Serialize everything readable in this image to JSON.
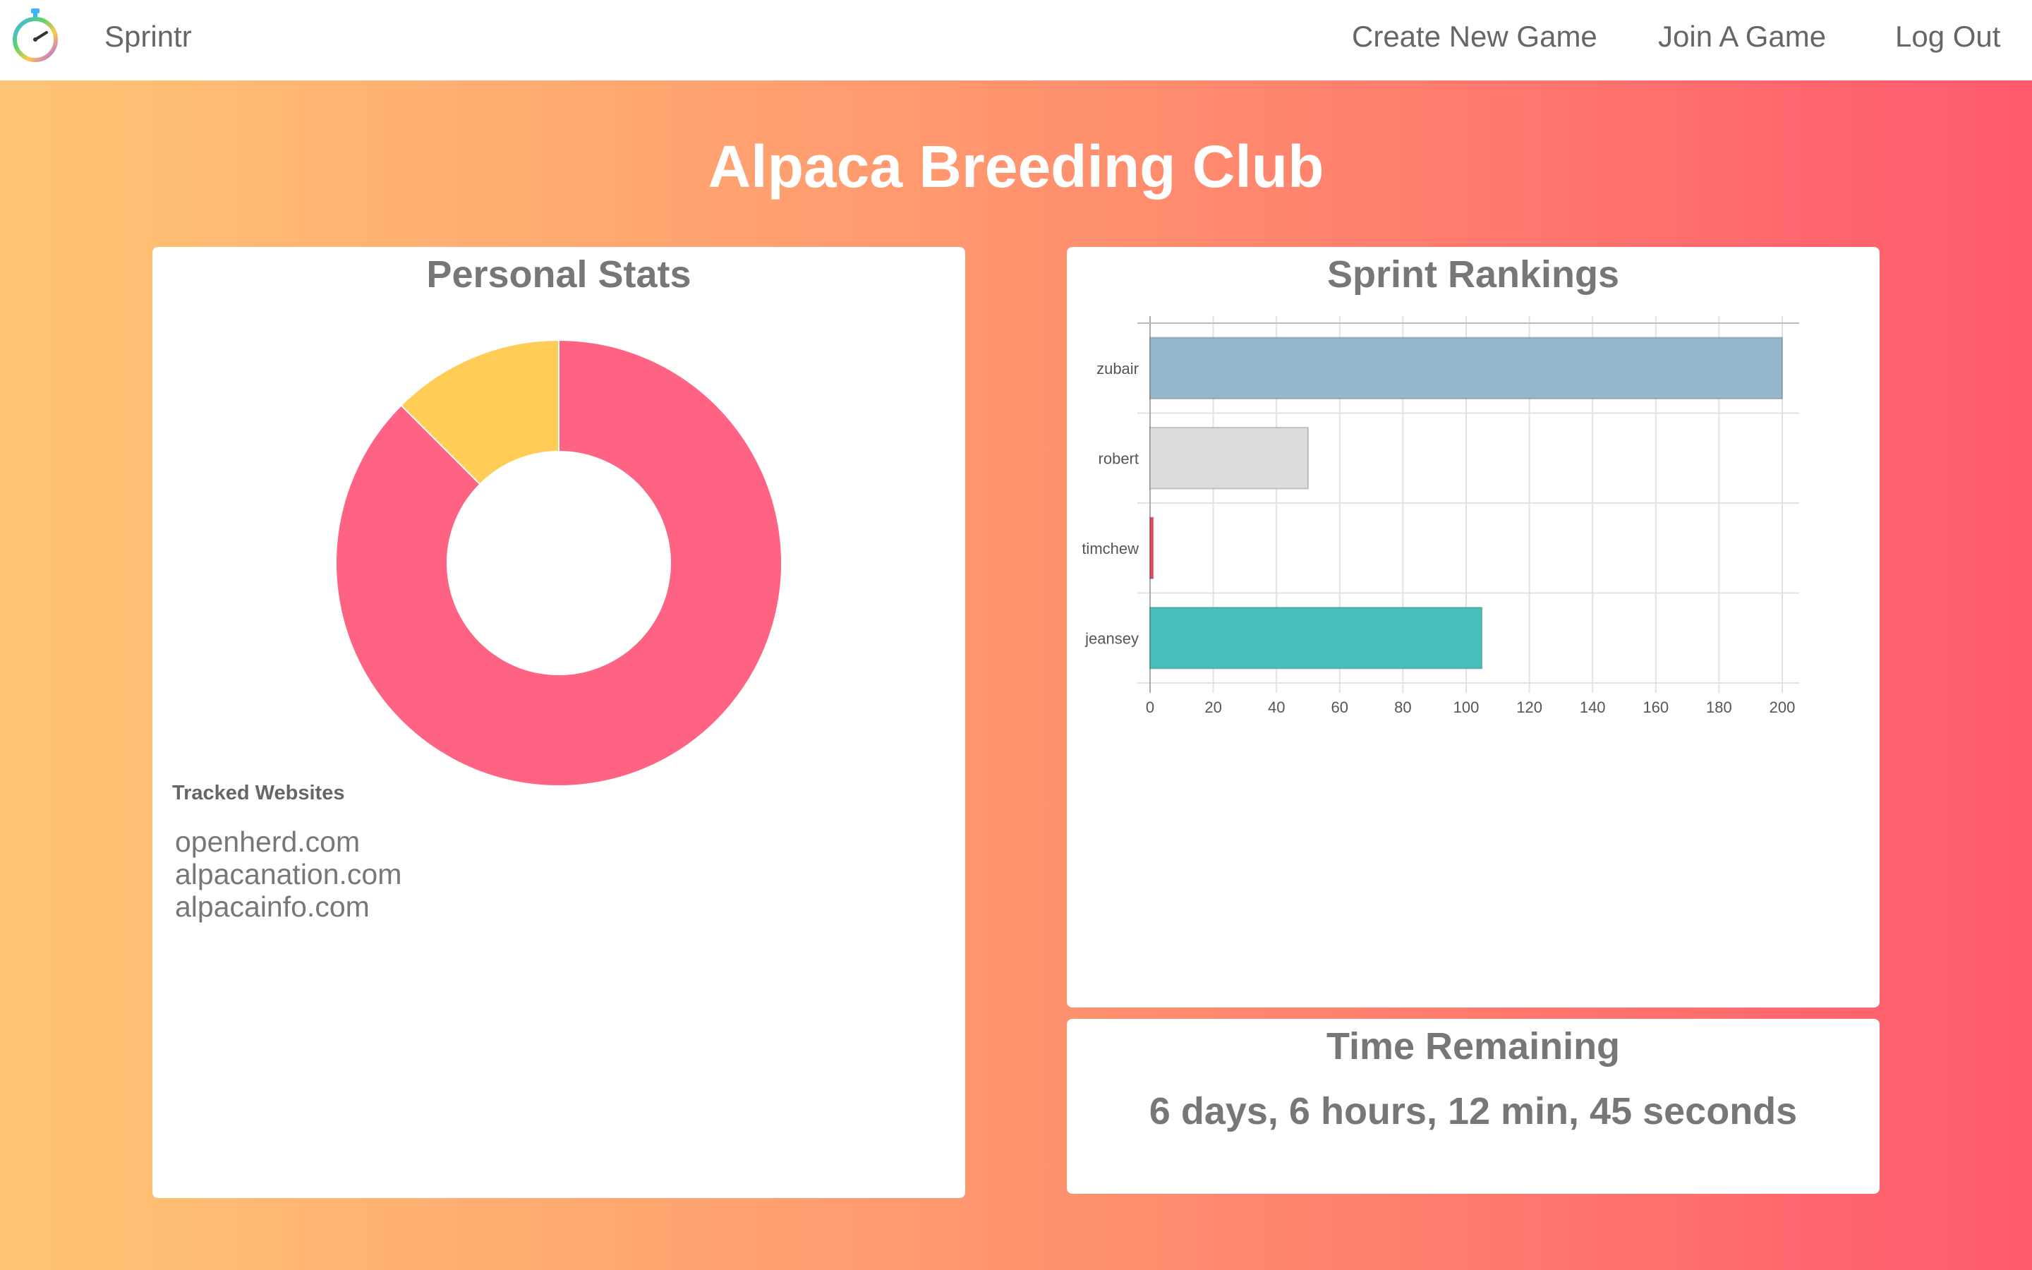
{
  "nav": {
    "brand": "Sprintr",
    "links": [
      "Create New Game",
      "Join A Game",
      "Log Out"
    ],
    "logo_icon": "stopwatch-icon"
  },
  "page": {
    "title": "Alpaca Breeding Club"
  },
  "personal_stats": {
    "title": "Personal Stats",
    "tracked_label": "Tracked Websites",
    "websites": [
      "openherd.com",
      "alpacanation.com",
      "alpacainfo.com"
    ],
    "colors": [
      "#ff6384",
      "#ffcd56"
    ]
  },
  "sprint_rankings": {
    "title": "Sprint Rankings"
  },
  "time_remaining": {
    "title": "Time Remaining",
    "value": "6 days, 6 hours, 12 min, 45 seconds"
  },
  "chart_data": [
    {
      "type": "pie",
      "variant": "doughnut",
      "values": [
        87.5,
        12.5
      ],
      "colors": [
        "#ff6384",
        "#ffcd56"
      ]
    },
    {
      "type": "bar",
      "orientation": "horizontal",
      "categories": [
        "zubair",
        "robert",
        "timchew",
        "jeansey"
      ],
      "values": [
        200,
        50,
        1,
        105
      ],
      "colors": [
        "#97b8cc",
        "#dcdcdc",
        "#e64b5a",
        "#48bfba"
      ],
      "xlim": [
        0,
        200
      ],
      "xticks": [
        0,
        20,
        40,
        60,
        80,
        100,
        120,
        140,
        160,
        180,
        200
      ],
      "grid": true
    }
  ]
}
